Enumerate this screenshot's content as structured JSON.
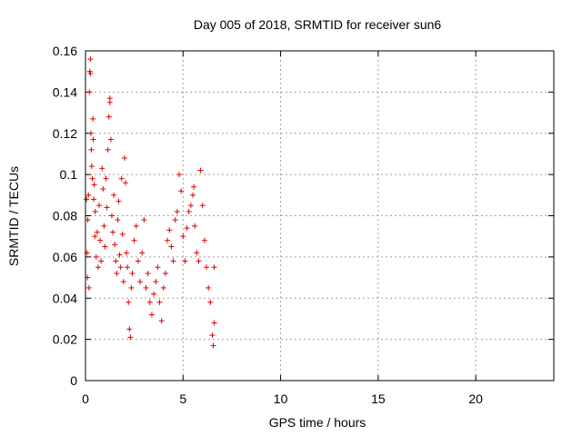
{
  "chart_data": {
    "type": "scatter",
    "title": "Day 005 of 2018, SRMTID for receiver sun6",
    "xlabel": "GPS time / hours",
    "ylabel": "SRMTID / TECUs",
    "xlim": [
      0,
      24
    ],
    "ylim": [
      0,
      0.16
    ],
    "xticks": [
      0,
      5,
      10,
      15,
      20
    ],
    "xtick_labels": [
      "0",
      "5",
      "10",
      "15",
      "20"
    ],
    "yticks": [
      0,
      0.02,
      0.04,
      0.06,
      0.08,
      0.1,
      0.12,
      0.14,
      0.16
    ],
    "ytick_labels": [
      "0",
      "0.02",
      "0.04",
      "0.06",
      "0.08",
      "0.1",
      "0.12",
      "0.14",
      "0.16"
    ],
    "grid": true,
    "marker": "+",
    "color": "#e00000",
    "series": [
      {
        "name": "sun6",
        "points": [
          [
            0.05,
            0.088
          ],
          [
            0.08,
            0.062
          ],
          [
            0.1,
            0.05
          ],
          [
            0.12,
            0.078
          ],
          [
            0.15,
            0.09
          ],
          [
            0.18,
            0.045
          ],
          [
            0.2,
            0.14
          ],
          [
            0.22,
            0.15
          ],
          [
            0.25,
            0.156
          ],
          [
            0.25,
            0.149
          ],
          [
            0.28,
            0.12
          ],
          [
            0.3,
            0.112
          ],
          [
            0.32,
            0.104
          ],
          [
            0.35,
            0.098
          ],
          [
            0.38,
            0.127
          ],
          [
            0.4,
            0.117
          ],
          [
            0.42,
            0.088
          ],
          [
            0.45,
            0.095
          ],
          [
            0.48,
            0.07
          ],
          [
            0.5,
            0.082
          ],
          [
            0.55,
            0.06
          ],
          [
            0.6,
            0.072
          ],
          [
            0.65,
            0.055
          ],
          [
            0.7,
            0.085
          ],
          [
            0.75,
            0.068
          ],
          [
            0.8,
            0.058
          ],
          [
            0.85,
            0.103
          ],
          [
            0.9,
            0.093
          ],
          [
            0.95,
            0.075
          ],
          [
            1.0,
            0.065
          ],
          [
            1.05,
            0.098
          ],
          [
            1.1,
            0.084
          ],
          [
            1.15,
            0.112
          ],
          [
            1.2,
            0.128
          ],
          [
            1.25,
            0.137
          ],
          [
            1.25,
            0.135
          ],
          [
            1.3,
            0.117
          ],
          [
            1.35,
            0.08
          ],
          [
            1.4,
            0.072
          ],
          [
            1.45,
            0.09
          ],
          [
            1.5,
            0.066
          ],
          [
            1.55,
            0.058
          ],
          [
            1.6,
            0.052
          ],
          [
            1.65,
            0.078
          ],
          [
            1.7,
            0.087
          ],
          [
            1.75,
            0.061
          ],
          [
            1.8,
            0.055
          ],
          [
            1.85,
            0.098
          ],
          [
            1.9,
            0.071
          ],
          [
            1.95,
            0.048
          ],
          [
            2.0,
            0.108
          ],
          [
            2.05,
            0.096
          ],
          [
            2.1,
            0.062
          ],
          [
            2.15,
            0.055
          ],
          [
            2.2,
            0.038
          ],
          [
            2.25,
            0.025
          ],
          [
            2.3,
            0.021
          ],
          [
            2.35,
            0.045
          ],
          [
            2.4,
            0.052
          ],
          [
            2.5,
            0.068
          ],
          [
            2.6,
            0.075
          ],
          [
            2.7,
            0.058
          ],
          [
            2.8,
            0.048
          ],
          [
            2.9,
            0.062
          ],
          [
            3.0,
            0.078
          ],
          [
            3.1,
            0.045
          ],
          [
            3.2,
            0.052
          ],
          [
            3.3,
            0.038
          ],
          [
            3.4,
            0.032
          ],
          [
            3.5,
            0.042
          ],
          [
            3.6,
            0.048
          ],
          [
            3.7,
            0.055
          ],
          [
            3.8,
            0.038
          ],
          [
            3.9,
            0.029
          ],
          [
            4.0,
            0.045
          ],
          [
            4.1,
            0.052
          ],
          [
            4.2,
            0.068
          ],
          [
            4.3,
            0.073
          ],
          [
            4.4,
            0.065
          ],
          [
            4.5,
            0.058
          ],
          [
            4.6,
            0.078
          ],
          [
            4.7,
            0.082
          ],
          [
            4.8,
            0.1
          ],
          [
            4.9,
            0.092
          ],
          [
            5.0,
            0.07
          ],
          [
            5.1,
            0.058
          ],
          [
            5.2,
            0.074
          ],
          [
            5.3,
            0.082
          ],
          [
            5.4,
            0.085
          ],
          [
            5.5,
            0.09
          ],
          [
            5.55,
            0.094
          ],
          [
            5.6,
            0.075
          ],
          [
            5.7,
            0.062
          ],
          [
            5.8,
            0.058
          ],
          [
            5.9,
            0.102
          ],
          [
            6.0,
            0.085
          ],
          [
            6.1,
            0.068
          ],
          [
            6.2,
            0.055
          ],
          [
            6.3,
            0.045
          ],
          [
            6.4,
            0.038
          ],
          [
            6.5,
            0.022
          ],
          [
            6.55,
            0.017
          ],
          [
            6.6,
            0.028
          ],
          [
            6.6,
            0.055
          ]
        ]
      }
    ]
  }
}
